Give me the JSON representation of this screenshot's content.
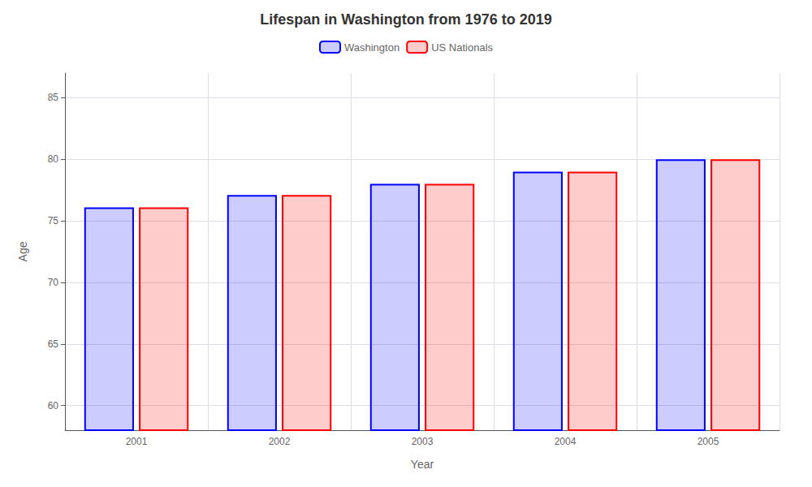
{
  "chart_data": {
    "type": "bar",
    "title": "Lifespan in Washington from 1976 to 2019",
    "x_label": "Year",
    "y_label": "Age",
    "categories": [
      "2001",
      "2002",
      "2003",
      "2004",
      "2005"
    ],
    "series": [
      {
        "name": "Washington",
        "color": "#0000ff",
        "values": [
          76.1,
          77.1,
          78.0,
          79.0,
          80.0
        ]
      },
      {
        "name": "US Nationals",
        "color": "#ff0000",
        "values": [
          76.1,
          77.1,
          78.0,
          79.0,
          80.0
        ]
      }
    ],
    "ylim": [
      58,
      87
    ],
    "yticks": [
      60,
      65,
      70,
      75,
      80,
      85
    ],
    "grid": true,
    "legend": "top"
  }
}
